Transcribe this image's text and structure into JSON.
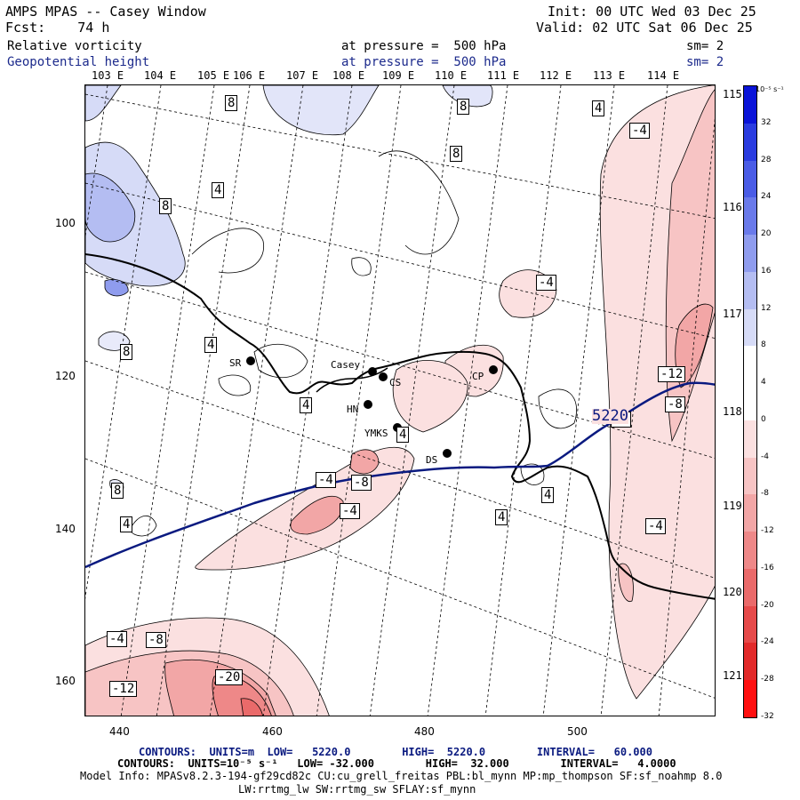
{
  "header": {
    "title": "AMPS MPAS -- Casey Window",
    "fcst": "Fcst:    74 h",
    "init": "Init: 00 UTC Wed 03 Dec 25",
    "valid": "Valid: 02 UTC Sat 06 Dec 25",
    "field1_name": "Relative vorticity",
    "field1_level": "at pressure =  500 hPa",
    "field1_sm": "sm= 2",
    "field2_name": "Geopotential height",
    "field2_level": "at pressure =  500 hPa",
    "field2_sm": "sm= 2"
  },
  "map": {
    "top_lon_labels": [
      "103 E",
      "104 E",
      "105 E",
      "106 E",
      "107 E",
      "108 E",
      "109 E",
      "110 E",
      "111 E",
      "112 E",
      "113 E",
      "114 E"
    ],
    "right_lon_labels": [
      "115 E",
      "116 E",
      "117 E",
      "118 E",
      "119 E",
      "120 E",
      "121 E"
    ],
    "y_ticks": [
      "100",
      "120",
      "140",
      "160"
    ],
    "x_ticks": [
      "440",
      "460",
      "480",
      "500"
    ],
    "stations": [
      "SR",
      "Casey",
      "CS",
      "HN",
      "YMKS",
      "DS",
      "CP"
    ],
    "contour_labels": {
      "pos8_a": "8",
      "pos8_b": "8",
      "pos8_c": "8",
      "pos8_d": "8",
      "pos8_e": "8",
      "pos8_f": "8",
      "pos4_a": "4",
      "pos4_b": "4",
      "pos4_c": "4",
      "pos4_d": "4",
      "pos4_e": "4",
      "pos4_f": "4",
      "pos4_g": "4",
      "pos4_h": "4",
      "neg4_a": "-4",
      "neg4_b": "-4",
      "neg4_c": "-4",
      "neg4_d": "-4",
      "neg4_e": "-4",
      "neg4_f": "-4",
      "neg4_g": "-4",
      "neg8_a": "-8",
      "neg8_b": "-8",
      "neg8_c": "-8",
      "neg12_a": "-12",
      "neg12_b": "-12",
      "neg20": "-20",
      "height": "5220"
    }
  },
  "colorbar": {
    "unit": "10⁻⁵ s⁻¹",
    "labels": [
      "32",
      "28",
      "24",
      "20",
      "16",
      "12",
      "8",
      "4",
      "0",
      "-4",
      "-8",
      "-12",
      "-16",
      "-20",
      "-24",
      "-28",
      "-32"
    ],
    "colors": [
      "#0a14d8",
      "#2a3ce0",
      "#4a5ce6",
      "#6a7aea",
      "#8f9cee",
      "#b4bdf2",
      "#d6dbf7",
      "#ffffff",
      "#ffffff",
      "#fbe0e0",
      "#f7c4c4",
      "#f2a6a6",
      "#ee8888",
      "#ea6a6a",
      "#e64a4a",
      "#e22a2a",
      "#ff1010"
    ]
  },
  "footer": {
    "contours1": "CONTOURS:  UNITS=m  LOW=   5220.0        HIGH=  5220.0        INTERVAL=   60.000",
    "contours2": "CONTOURS:  UNITS=10⁻⁵ s⁻¹   LOW= -32.000        HIGH=  32.000        INTERVAL=   4.0000",
    "model_info": "Model Info: MPASv8.2.3-194-gf29cd82c CU:cu_grell_freitas PBL:bl_mynn MP:mp_thompson SF:sf_noahmp 8.0",
    "model_info2": "LW:rrtmg_lw SW:rrtmg_sw SFLAY:sf_mynn"
  }
}
